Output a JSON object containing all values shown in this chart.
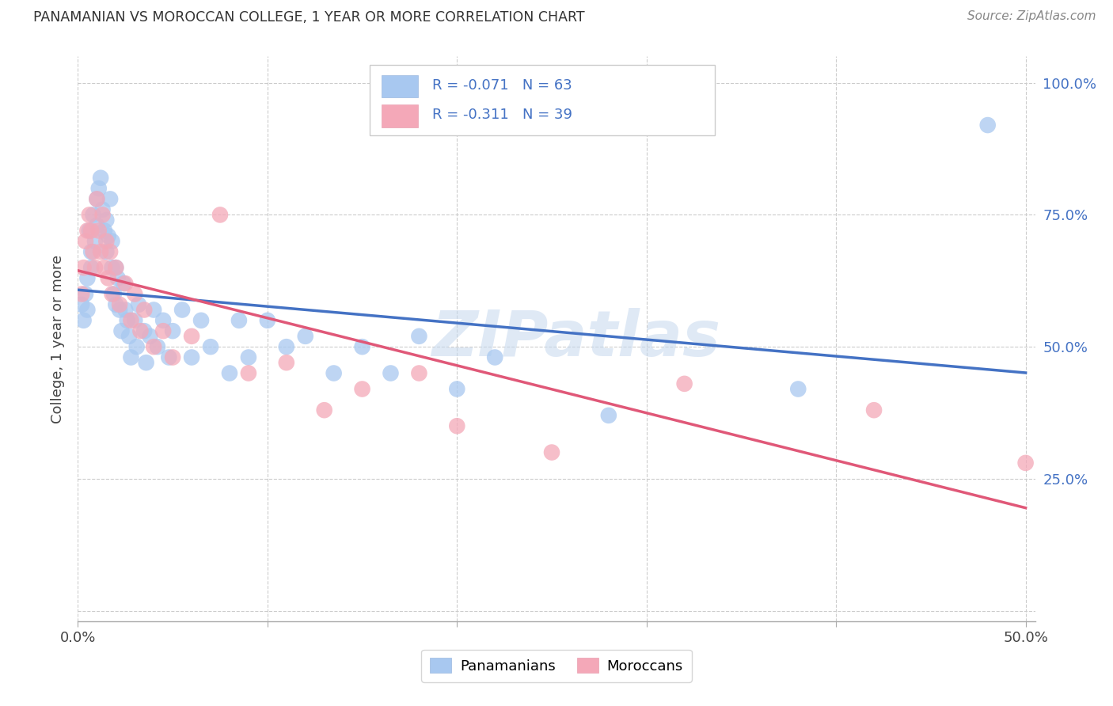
{
  "title": "PANAMANIAN VS MOROCCAN COLLEGE, 1 YEAR OR MORE CORRELATION CHART",
  "source": "Source: ZipAtlas.com",
  "ylabel": "College, 1 year or more",
  "legend_label1": "R = -0.071   N = 63",
  "legend_label2": "R = -0.311   N = 39",
  "legend_group1": "Panamanians",
  "legend_group2": "Moroccans",
  "R1": -0.071,
  "N1": 63,
  "R2": -0.311,
  "N2": 39,
  "blue_color": "#A8C8F0",
  "pink_color": "#F4A8B8",
  "line_blue": "#4472C4",
  "line_pink": "#E05878",
  "line_pink_dash": "#E8A0B0",
  "watermark": "ZIPatlas",
  "xlim": [
    0.0,
    0.505
  ],
  "ylim": [
    -0.02,
    1.05
  ],
  "blue_scatter_x": [
    0.002,
    0.003,
    0.004,
    0.005,
    0.005,
    0.006,
    0.007,
    0.007,
    0.008,
    0.009,
    0.01,
    0.01,
    0.011,
    0.012,
    0.013,
    0.014,
    0.015,
    0.015,
    0.016,
    0.017,
    0.018,
    0.018,
    0.019,
    0.02,
    0.02,
    0.021,
    0.022,
    0.023,
    0.024,
    0.025,
    0.026,
    0.027,
    0.028,
    0.03,
    0.031,
    0.032,
    0.035,
    0.036,
    0.038,
    0.04,
    0.042,
    0.045,
    0.048,
    0.05,
    0.055,
    0.06,
    0.065,
    0.07,
    0.08,
    0.085,
    0.09,
    0.1,
    0.11,
    0.12,
    0.135,
    0.15,
    0.165,
    0.18,
    0.2,
    0.22,
    0.28,
    0.38,
    0.48
  ],
  "blue_scatter_y": [
    0.58,
    0.55,
    0.6,
    0.63,
    0.57,
    0.72,
    0.68,
    0.65,
    0.75,
    0.7,
    0.78,
    0.73,
    0.8,
    0.82,
    0.76,
    0.72,
    0.68,
    0.74,
    0.71,
    0.78,
    0.65,
    0.7,
    0.6,
    0.65,
    0.58,
    0.63,
    0.57,
    0.53,
    0.62,
    0.57,
    0.55,
    0.52,
    0.48,
    0.55,
    0.5,
    0.58,
    0.53,
    0.47,
    0.52,
    0.57,
    0.5,
    0.55,
    0.48,
    0.53,
    0.57,
    0.48,
    0.55,
    0.5,
    0.45,
    0.55,
    0.48,
    0.55,
    0.5,
    0.52,
    0.45,
    0.5,
    0.45,
    0.52,
    0.42,
    0.48,
    0.37,
    0.42,
    0.92
  ],
  "pink_scatter_x": [
    0.002,
    0.003,
    0.004,
    0.005,
    0.006,
    0.007,
    0.008,
    0.009,
    0.01,
    0.011,
    0.012,
    0.013,
    0.014,
    0.015,
    0.016,
    0.017,
    0.018,
    0.02,
    0.022,
    0.025,
    0.028,
    0.03,
    0.033,
    0.035,
    0.04,
    0.045,
    0.05,
    0.06,
    0.075,
    0.09,
    0.11,
    0.13,
    0.15,
    0.18,
    0.2,
    0.25,
    0.32,
    0.42,
    0.5
  ],
  "pink_scatter_y": [
    0.6,
    0.65,
    0.7,
    0.72,
    0.75,
    0.72,
    0.68,
    0.65,
    0.78,
    0.72,
    0.68,
    0.75,
    0.65,
    0.7,
    0.63,
    0.68,
    0.6,
    0.65,
    0.58,
    0.62,
    0.55,
    0.6,
    0.53,
    0.57,
    0.5,
    0.53,
    0.48,
    0.52,
    0.75,
    0.45,
    0.47,
    0.38,
    0.42,
    0.45,
    0.35,
    0.3,
    0.43,
    0.38,
    0.28
  ]
}
